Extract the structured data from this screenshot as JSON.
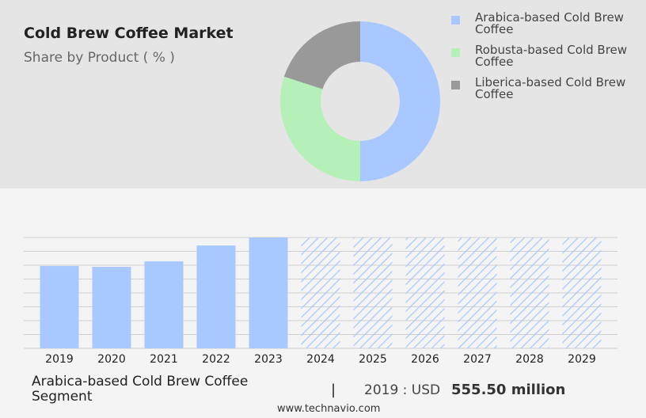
{
  "chart_data": [
    {
      "type": "donut",
      "title": "Cold Brew Coffee Market",
      "subtitle": "Share by Product ( % )",
      "categories": [
        "Arabica-based Cold Brew Coffee",
        "Robusta-based Cold Brew Coffee",
        "Liberica-based Cold Brew Coffee"
      ],
      "values": [
        50,
        30,
        20
      ],
      "colors": [
        "#a9c8ff",
        "#b5f0b9",
        "#999999"
      ]
    },
    {
      "type": "bar",
      "categories": [
        "2019",
        "2020",
        "2021",
        "2022",
        "2023",
        "2024",
        "2025",
        "2026",
        "2027",
        "2028",
        "2029"
      ],
      "values": [
        555.5,
        550,
        587,
        694,
        748,
        null,
        null,
        null,
        null,
        null,
        null
      ],
      "color": "#a9c8ff",
      "ylim": [
        0,
        748
      ],
      "yticks": [
        0,
        93.5,
        187,
        280.5,
        374,
        467.5,
        561,
        654.5,
        748
      ],
      "grid": true
    }
  ],
  "footer": {
    "segment": "Arabica-based Cold Brew Coffee Segment",
    "separator": "|",
    "year_label": "2019 : USD",
    "value_label": "555.50 million",
    "source": "www.technavio.com"
  }
}
